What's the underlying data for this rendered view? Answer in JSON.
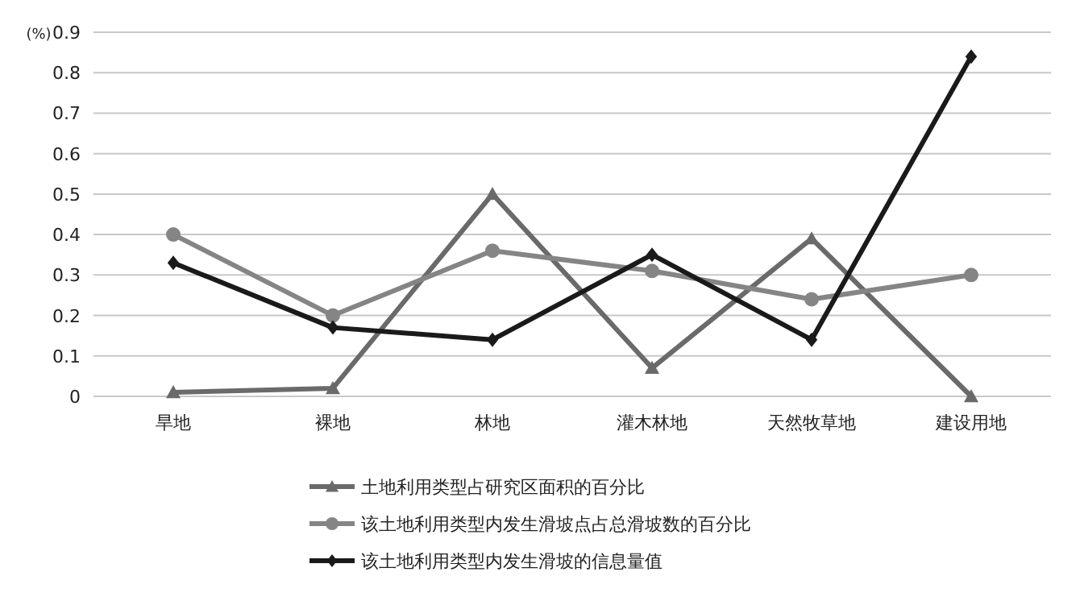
{
  "chart_data": {
    "type": "line",
    "ylabel": "(%)",
    "categories": [
      "旱地",
      "裸地",
      "林地",
      "灌木林地",
      "天然牧草地",
      "建设用地"
    ],
    "series": [
      {
        "name": "土地利用类型占研究区面积的百分比",
        "color": "#6a6a6a",
        "marker": "triangle",
        "values": [
          0.01,
          0.02,
          0.5,
          0.07,
          0.39,
          0.0
        ]
      },
      {
        "name": "该土地利用类型内发生滑坡点占总滑坡数的百分比",
        "color": "#858585",
        "marker": "circle",
        "values": [
          0.4,
          0.2,
          0.36,
          0.31,
          0.24,
          0.3
        ]
      },
      {
        "name": "该土地利用类型内发生滑坡的信息量值",
        "color": "#1a1a1a",
        "marker": "diamond",
        "values": [
          0.33,
          0.17,
          0.14,
          0.35,
          0.14,
          0.84
        ]
      }
    ],
    "ylim": [
      0,
      0.9
    ],
    "yticks": [
      0,
      0.1,
      0.2,
      0.3,
      0.4,
      0.5,
      0.6,
      0.7,
      0.8,
      0.9
    ],
    "grid": "y",
    "legend": "bottom"
  }
}
